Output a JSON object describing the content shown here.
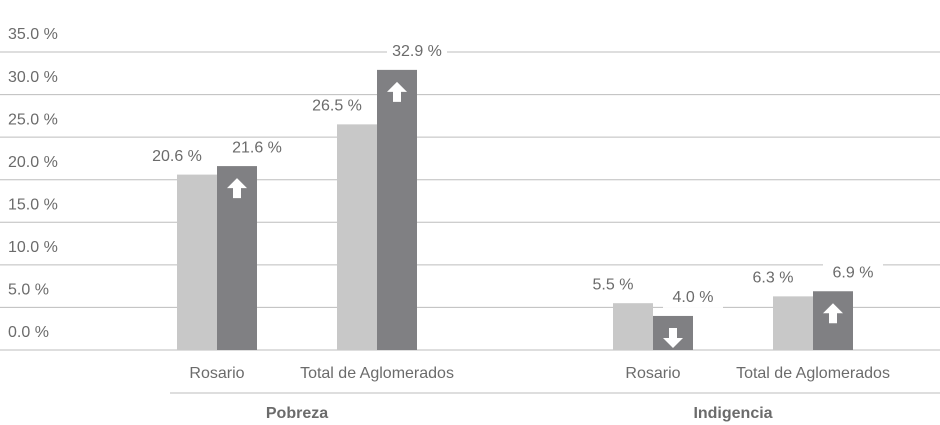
{
  "chart_data": {
    "type": "bar",
    "groups": [
      "Pobreza",
      "Indigencia"
    ],
    "categories": [
      "Rosario",
      "Total de Aglomerados",
      "Rosario",
      "Total de Aglomerados"
    ],
    "series": [
      {
        "color": "#c8c8c8",
        "values": [
          20.6,
          26.5,
          5.5,
          6.3
        ],
        "value_labels": [
          "20.6 %",
          "26.5 %",
          "5.5 %",
          "6.3 %"
        ]
      },
      {
        "color": "#808083",
        "values": [
          21.6,
          32.9,
          4.0,
          6.9
        ],
        "value_labels": [
          "21.6 %",
          "32.9 %",
          "4.0 %",
          "6.9 %"
        ]
      }
    ],
    "ylim": [
      0,
      35
    ],
    "yticks": [
      {
        "value": 0,
        "label": "0.0 %"
      },
      {
        "value": 5,
        "label": "5.0 %"
      },
      {
        "value": 10,
        "label": "10.0 %"
      },
      {
        "value": 15,
        "label": "15.0 %"
      },
      {
        "value": 20,
        "label": "20.0 %"
      },
      {
        "value": 25,
        "label": "25.0 %"
      },
      {
        "value": 30,
        "label": "30.0 %"
      },
      {
        "value": 35,
        "label": "35.0 %"
      }
    ],
    "grid": true
  }
}
